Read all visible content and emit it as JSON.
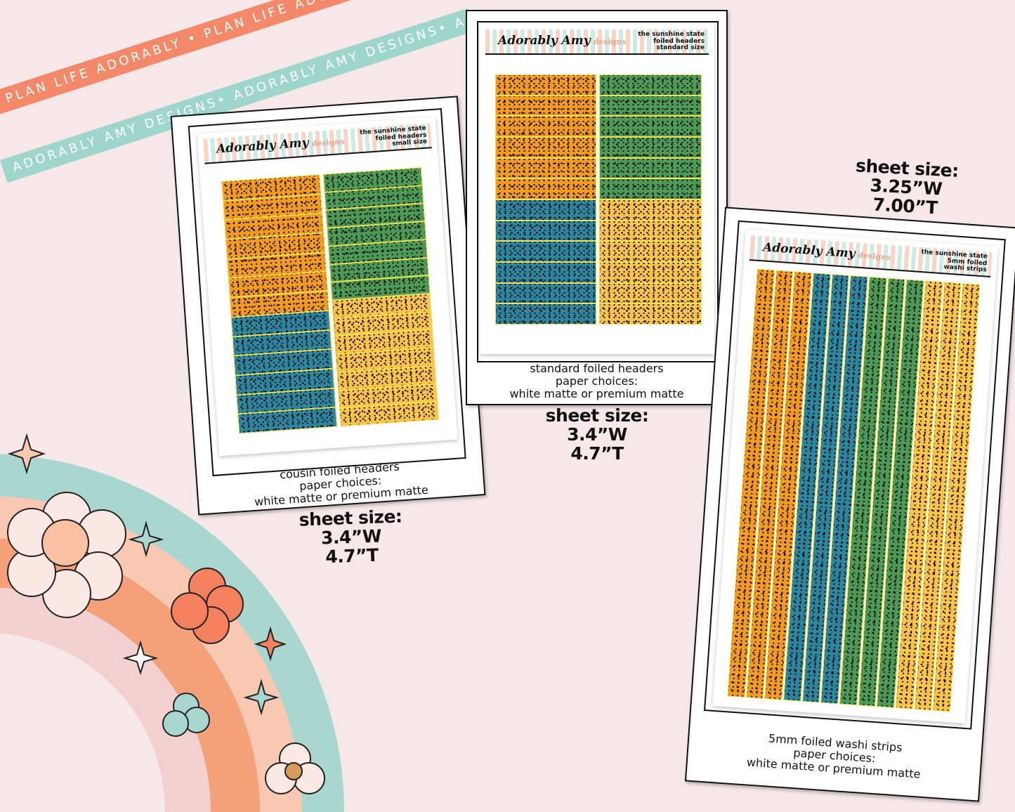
{
  "ribbons": {
    "coral": "PLAN LIFE ADORABLY • PLAN LIFE ADORABLY • PLAN LIFE ADORABLY",
    "teal": "ADORABLY AMY DESIGNS• ADORABLY AMY DESIGNS• ADORABLY AMY DESIGNS"
  },
  "colors": {
    "orange": "#f39a23",
    "green": "#4c9a56",
    "blue": "#2d86a0",
    "yellow": "#f9c24a",
    "coral": "#f4896a",
    "teal": "#9ed6cc",
    "background": "#f6e8e8"
  },
  "brand": {
    "logo": "Adorably Amy",
    "logo_sub": "designs"
  },
  "cards": [
    {
      "header": [
        "the sunshine state",
        "foiled headers",
        "small size"
      ],
      "caption": [
        "cousin foiled headers",
        "paper choices:",
        "white matte or premium matte"
      ],
      "size": [
        "sheet size:",
        "3.4”W",
        "4.7”T"
      ]
    },
    {
      "header": [
        "the sunshine state",
        "foiled headers",
        "standard size"
      ],
      "caption": [
        "standard foiled headers",
        "paper choices:",
        "white matte or premium matte"
      ],
      "size": [
        "sheet size:",
        "3.4”W",
        "4.7”T"
      ]
    },
    {
      "header": [
        "the sunshine state",
        "5mm foiled",
        "washi strips"
      ],
      "caption": [
        "5mm foiled washi strips",
        "paper choices:",
        "white matte or premium matte"
      ],
      "size": [
        "sheet size:",
        "3.25”W",
        "7.00”T"
      ]
    }
  ]
}
